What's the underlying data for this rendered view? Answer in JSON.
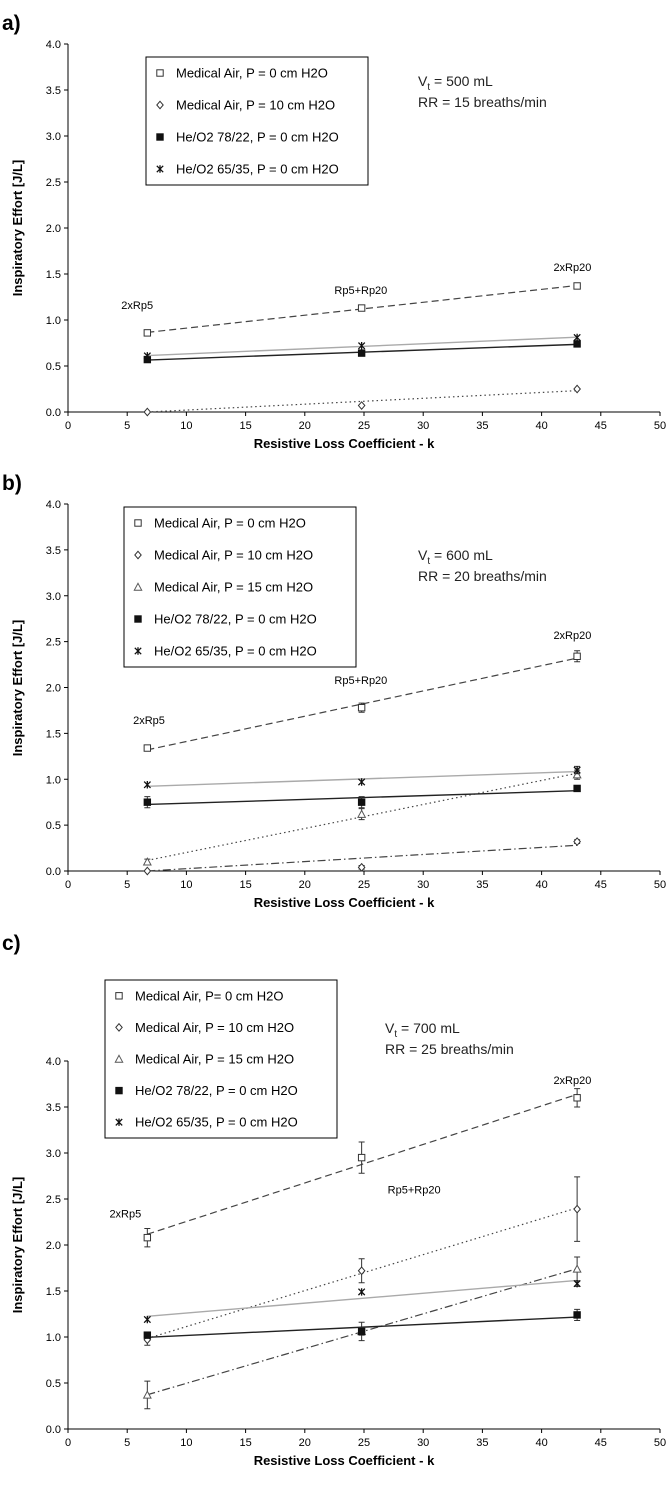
{
  "chart_data": [
    {
      "type": "line",
      "panel_label": "a)",
      "xlabel": "Resistive Loss Coefficient - k",
      "ylabel": "Inspiratory Effort [J/L]",
      "xlim": [
        0,
        50
      ],
      "ylim": [
        0,
        4
      ],
      "x_ticks": [
        "0",
        "5",
        "10",
        "15",
        "20",
        "25",
        "30",
        "35",
        "40",
        "45",
        "50"
      ],
      "y_ticks": [
        "0.0",
        "0.5",
        "1.0",
        "1.5",
        "2.0",
        "2.5",
        "3.0",
        "3.5",
        "4.0"
      ],
      "legend": "top-left",
      "info_lines": [
        "V = 500 mL",
        "RR = 15 breaths/min"
      ],
      "info_sub": "t",
      "annotations": [
        {
          "text": "2xRp5",
          "x": 4.5,
          "y": 1.12
        },
        {
          "text": "Rp5+Rp20",
          "x": 22.5,
          "y": 1.28
        },
        {
          "text": "2xRp20",
          "x": 41,
          "y": 1.53
        }
      ],
      "series": [
        {
          "name": "Medical Air, P = 0 cm H2O",
          "marker": "square",
          "line": "dashed",
          "color": "#444444",
          "x": [
            6.7,
            24.8,
            43
          ],
          "y": [
            0.86,
            1.13,
            1.37
          ],
          "err": [
            0,
            0.02,
            0.02
          ]
        },
        {
          "name": "Medical Air, P = 10 cm H2O",
          "marker": "diamond",
          "line": "dotted",
          "color": "#444444",
          "x": [
            6.7,
            24.8,
            43
          ],
          "y": [
            0.0,
            0.07,
            0.25
          ],
          "err": [
            0,
            0,
            0
          ]
        },
        {
          "name": "He/O2 78/22, P = 0 cm H2O",
          "marker": "filled-square",
          "line": "solid",
          "color": "#222222",
          "x": [
            6.7,
            24.8,
            43
          ],
          "y": [
            0.57,
            0.64,
            0.74
          ],
          "err": [
            0,
            0,
            0
          ]
        },
        {
          "name": "He/O2 65/35, P = 0 cm H2O",
          "marker": "star",
          "line": "solid",
          "color": "#aaaaaa",
          "x": [
            6.7,
            24.8,
            43
          ],
          "y": [
            0.61,
            0.72,
            0.81
          ],
          "err": [
            0,
            0,
            0
          ]
        }
      ]
    },
    {
      "type": "line",
      "panel_label": "b)",
      "xlabel": "Resistive Loss Coefficient - k",
      "ylabel": "Inspiratory Effort [J/L]",
      "xlim": [
        0,
        50
      ],
      "ylim": [
        0,
        4
      ],
      "x_ticks": [
        "0",
        "5",
        "10",
        "15",
        "20",
        "25",
        "30",
        "35",
        "40",
        "45",
        "50"
      ],
      "y_ticks": [
        "0.0",
        "0.5",
        "1.0",
        "1.5",
        "2.0",
        "2.5",
        "3.0",
        "3.5",
        "4.0"
      ],
      "legend": "top-left",
      "info_lines": [
        "V = 600 mL",
        "RR = 20 breaths/min"
      ],
      "info_sub": "t",
      "annotations": [
        {
          "text": "2xRp5",
          "x": 5.5,
          "y": 1.6
        },
        {
          "text": "Rp5+Rp20",
          "x": 22.5,
          "y": 2.04
        },
        {
          "text": "2xRp20",
          "x": 41,
          "y": 2.53
        }
      ],
      "series": [
        {
          "name": "Medical Air, P = 0 cm H2O",
          "marker": "square",
          "line": "dashed",
          "color": "#444444",
          "x": [
            6.7,
            24.8,
            43
          ],
          "y": [
            1.34,
            1.78,
            2.34
          ],
          "err": [
            0.02,
            0.05,
            0.06
          ]
        },
        {
          "name": "Medical Air, P = 10 cm H2O",
          "marker": "diamond",
          "line": "dashdot",
          "color": "#444444",
          "x": [
            6.7,
            24.8,
            43
          ],
          "y": [
            0.0,
            0.04,
            0.32
          ],
          "err": [
            0,
            0.02,
            0.02
          ]
        },
        {
          "name": "Medical Air, P = 15 cm H2O",
          "marker": "triangle",
          "line": "dotted",
          "color": "#444444",
          "x": [
            6.7,
            24.8,
            43
          ],
          "y": [
            0.1,
            0.62,
            1.05
          ],
          "err": [
            0.03,
            0.06,
            0.05
          ]
        },
        {
          "name": "He/O2 78/22, P = 0 cm H2O",
          "marker": "filled-square",
          "line": "solid",
          "color": "#222222",
          "x": [
            6.7,
            24.8,
            43
          ],
          "y": [
            0.75,
            0.75,
            0.9
          ],
          "err": [
            0.06,
            0.06,
            0.03
          ]
        },
        {
          "name": "He/O2 65/35, P = 0 cm H2O",
          "marker": "star",
          "line": "solid",
          "color": "#aaaaaa",
          "x": [
            6.7,
            24.8,
            43
          ],
          "y": [
            0.94,
            0.97,
            1.1
          ],
          "err": [
            0,
            0,
            0.04
          ]
        }
      ]
    },
    {
      "type": "line",
      "panel_label": "c)",
      "xlabel": "Resistive Loss Coefficient - k",
      "ylabel": "Inspiratory Effort [J/L]",
      "xlim": [
        0,
        50
      ],
      "ylim": [
        0,
        4
      ],
      "x_ticks": [
        "0",
        "5",
        "10",
        "15",
        "20",
        "25",
        "30",
        "35",
        "40",
        "45",
        "50"
      ],
      "y_ticks": [
        "0.0",
        "0.5",
        "1.0",
        "1.5",
        "2.0",
        "2.5",
        "3.0",
        "3.5",
        "4.0"
      ],
      "legend": "top-left",
      "info_lines": [
        "V = 700 mL",
        "RR = 25 breaths/min"
      ],
      "info_sub": "t",
      "annotations": [
        {
          "text": "2xRp5",
          "x": 3.5,
          "y": 2.3
        },
        {
          "text": "Rp5+Rp20",
          "x": 27,
          "y": 2.56
        },
        {
          "text": "2xRp20",
          "x": 41,
          "y": 3.75
        }
      ],
      "series": [
        {
          "name": "Medical Air, P= 0 cm H2O",
          "marker": "square",
          "line": "dashed",
          "color": "#444444",
          "x": [
            6.7,
            24.8,
            43
          ],
          "y": [
            2.08,
            2.95,
            3.6
          ],
          "err": [
            0.1,
            0.17,
            0.1
          ]
        },
        {
          "name": "Medical Air, P = 10 cm H2O",
          "marker": "diamond",
          "line": "dotted",
          "color": "#444444",
          "x": [
            6.7,
            24.8,
            43
          ],
          "y": [
            0.97,
            1.72,
            2.39
          ],
          "err": [
            0.06,
            0.13,
            0.35
          ]
        },
        {
          "name": "Medical Air, P = 15 cm H2O",
          "marker": "triangle",
          "line": "dashdot",
          "color": "#444444",
          "x": [
            6.7,
            24.8,
            43
          ],
          "y": [
            0.37,
            1.06,
            1.74
          ],
          "err": [
            0.15,
            0.1,
            0.13
          ]
        },
        {
          "name": "He/O2 78/22, P = 0 cm H2O",
          "marker": "filled-square",
          "line": "solid",
          "color": "#222222",
          "x": [
            6.7,
            24.8,
            43
          ],
          "y": [
            1.02,
            1.06,
            1.24
          ],
          "err": [
            0,
            0.04,
            0.06
          ]
        },
        {
          "name": "He/O2 65/35, P = 0 cm H2O",
          "marker": "star",
          "line": "solid",
          "color": "#aaaaaa",
          "x": [
            6.7,
            24.8,
            43
          ],
          "y": [
            1.19,
            1.49,
            1.58
          ],
          "err": [
            0,
            0,
            0.03
          ]
        }
      ]
    }
  ]
}
